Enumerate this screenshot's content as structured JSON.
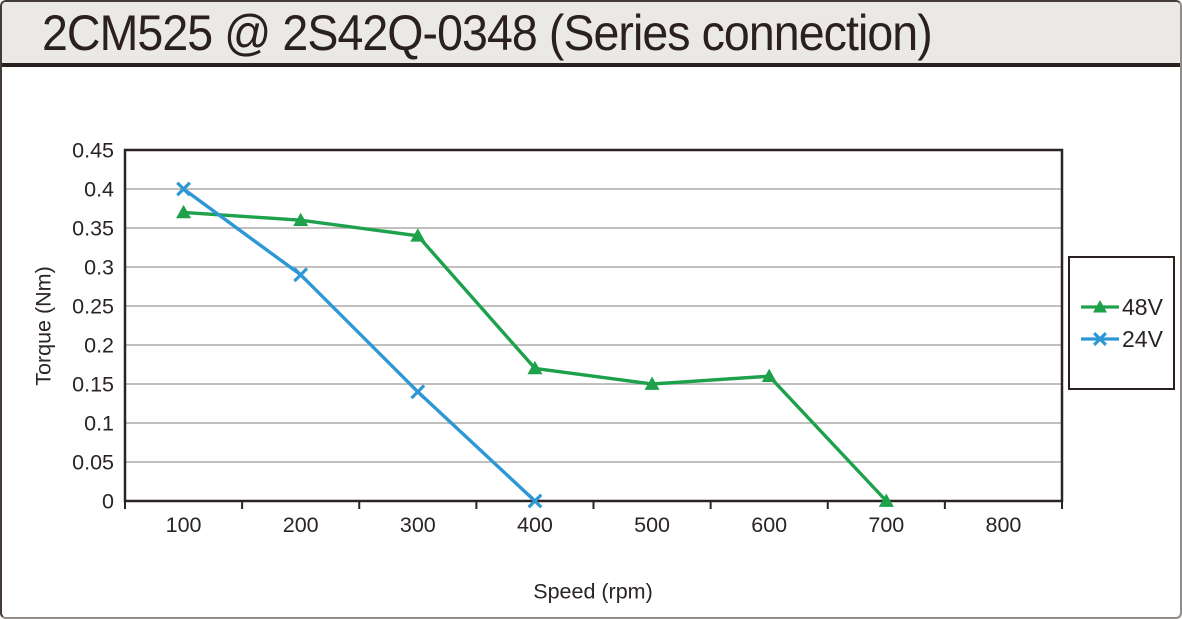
{
  "chart_data": {
    "type": "line",
    "title": "2CM525 @ 2S42Q-0348 (Series connection)",
    "xlabel": "Speed (rpm)",
    "ylabel": "Torque (Nm)",
    "categories": [
      100,
      200,
      300,
      400,
      500,
      600,
      700,
      800
    ],
    "ylim": [
      0,
      0.45
    ],
    "ytick_step": 0.05,
    "grid": "horizontal",
    "legend_position": "right-outside",
    "series": [
      {
        "name": "48V",
        "color": "#1ea14b",
        "marker": "triangle",
        "x": [
          100,
          200,
          300,
          400,
          500,
          600,
          700
        ],
        "values": [
          0.37,
          0.36,
          0.34,
          0.17,
          0.15,
          0.16,
          0
        ]
      },
      {
        "name": "24V",
        "color": "#2e97d6",
        "marker": "x",
        "x": [
          100,
          200,
          300,
          400
        ],
        "values": [
          0.4,
          0.29,
          0.14,
          0
        ]
      }
    ]
  },
  "colors": {
    "axis": "#2a2422",
    "grid": "#aeaba9",
    "text": "#2a2422",
    "title_bar_bg": "#ebe9e8"
  }
}
